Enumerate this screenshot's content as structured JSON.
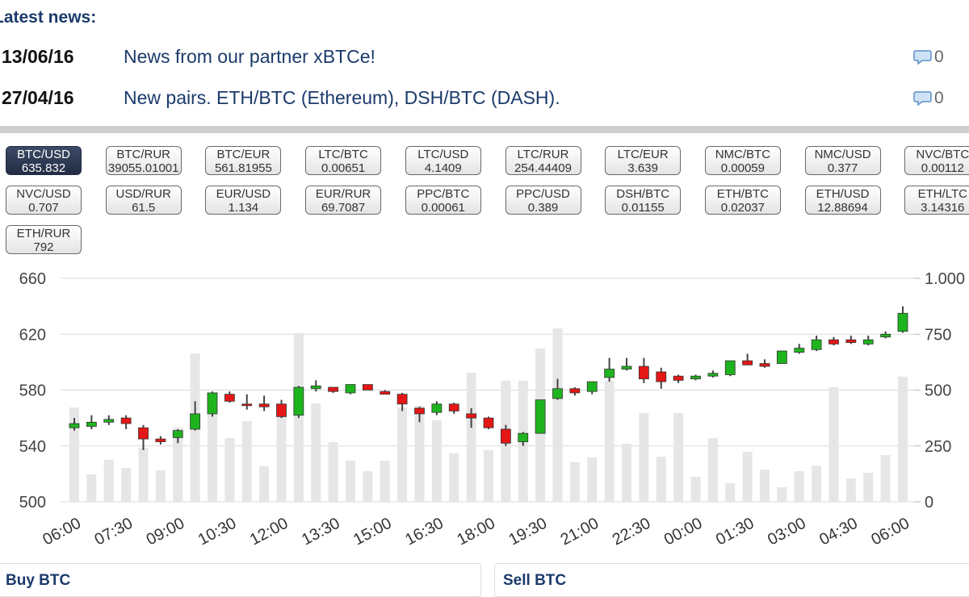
{
  "header": {
    "title": "Latest news:"
  },
  "news": [
    {
      "date": "13/06/16",
      "title": "News from our partner xBTCe!",
      "comments": 0
    },
    {
      "date": "27/04/16",
      "title": "New pairs. ETH/BTC (Ethereum), DSH/BTC (DASH).",
      "comments": 0
    }
  ],
  "pairs": [
    {
      "name": "BTC/USD",
      "price": 635.832,
      "active": true
    },
    {
      "name": "BTC/RUR",
      "price": 39055.01001
    },
    {
      "name": "BTC/EUR",
      "price": 561.81955
    },
    {
      "name": "LTC/BTC",
      "price": 0.00651
    },
    {
      "name": "LTC/USD",
      "price": 4.1409
    },
    {
      "name": "LTC/RUR",
      "price": 254.44409
    },
    {
      "name": "LTC/EUR",
      "price": 3.639
    },
    {
      "name": "NMC/BTC",
      "price": 0.00059
    },
    {
      "name": "NMC/USD",
      "price": 0.377
    },
    {
      "name": "NVC/BTC",
      "price": 0.00112
    },
    {
      "name": "NVC/USD",
      "price": 0.707
    },
    {
      "name": "USD/RUR",
      "price": 61.5
    },
    {
      "name": "EUR/USD",
      "price": 1.134
    },
    {
      "name": "EUR/RUR",
      "price": 69.7087
    },
    {
      "name": "PPC/BTC",
      "price": 0.00061
    },
    {
      "name": "PPC/USD",
      "price": 0.389
    },
    {
      "name": "DSH/BTC",
      "price": 0.01155
    },
    {
      "name": "ETH/BTC",
      "price": 0.02037
    },
    {
      "name": "ETH/USD",
      "price": 12.88694
    },
    {
      "name": "ETH/LTC",
      "price": 3.14316
    },
    {
      "name": "ETH/RUR",
      "price": 792
    }
  ],
  "chart_data": {
    "type": "candlestick",
    "categories": [
      "06:00",
      null,
      null,
      "07:30",
      null,
      null,
      "09:00",
      null,
      null,
      "10:30",
      null,
      null,
      "12:00",
      null,
      null,
      "13:30",
      null,
      null,
      "15:00",
      null,
      null,
      "16:30",
      null,
      null,
      "18:00",
      null,
      null,
      "19:30",
      null,
      null,
      "21:00",
      null,
      null,
      "22:30",
      null,
      null,
      "00:00",
      null,
      null,
      "01:30",
      null,
      null,
      "03:00",
      null,
      null,
      "04:30",
      null,
      null,
      "06:00"
    ],
    "open": [
      553,
      554,
      557,
      560,
      553,
      545,
      546,
      552,
      563,
      577,
      570,
      570,
      570,
      562,
      581,
      582,
      578,
      584,
      579,
      577,
      567,
      564,
      570,
      563,
      560,
      552,
      543,
      549,
      574,
      581,
      579,
      589,
      595,
      597,
      593,
      590,
      588,
      590,
      591,
      601,
      599,
      599,
      607,
      609,
      616,
      616,
      613,
      618,
      622
    ],
    "high": [
      560,
      562,
      562,
      562,
      555,
      547,
      552,
      572,
      579,
      579,
      577,
      576,
      573,
      583,
      587,
      582,
      584,
      584,
      580,
      578,
      568,
      572,
      571,
      567,
      561,
      555,
      550,
      573,
      588,
      582,
      586,
      603,
      603,
      603,
      596,
      591,
      591,
      594,
      601,
      606,
      602,
      608,
      613,
      619,
      618,
      619,
      619,
      622,
      640
    ],
    "low": [
      551,
      552,
      555,
      552,
      537,
      541,
      542,
      551,
      561,
      571,
      566,
      565,
      560,
      560,
      579,
      578,
      577,
      580,
      577,
      565,
      557,
      562,
      563,
      553,
      552,
      540,
      540,
      549,
      573,
      576,
      577,
      586,
      594,
      585,
      581,
      585,
      587,
      589,
      590,
      598,
      596,
      599,
      606,
      608,
      612,
      613,
      612,
      617,
      621
    ],
    "close": [
      556,
      557,
      559,
      556,
      545,
      543,
      551,
      563,
      578,
      572,
      569,
      568,
      561,
      582,
      583,
      579,
      584,
      580,
      577,
      570,
      563,
      570,
      565,
      560,
      553,
      542,
      549,
      573,
      581,
      578,
      586,
      595,
      597,
      588,
      586,
      587,
      590,
      592,
      601,
      598,
      597,
      608,
      610,
      616,
      613,
      614,
      616,
      620,
      635
    ],
    "volume": [
      422,
      123,
      188,
      152,
      242,
      141,
      332,
      664,
      404,
      285,
      361,
      159,
      422,
      755,
      440,
      267,
      184,
      137,
      184,
      422,
      430,
      365,
      217,
      578,
      231,
      542,
      542,
      686,
      776,
      177,
      199,
      542,
      260,
      397,
      202,
      397,
      112,
      285,
      83,
      224,
      144,
      65,
      137,
      162,
      513,
      105,
      130,
      209,
      560
    ],
    "volume_axis": "y2",
    "up_color": "#1eb41e",
    "down_color": "#e51616",
    "volume_color": "#e6e6e6",
    "ylim": [
      500,
      660
    ],
    "yticks": [
      500,
      540,
      580,
      620,
      660
    ],
    "y2lim": [
      0,
      1000
    ],
    "y2ticks": [
      0,
      250,
      500,
      750,
      {
        "value": 1000,
        "label": "1.000"
      }
    ],
    "grid": true
  },
  "footer": {
    "buy": "Buy BTC",
    "sell": "Sell BTC"
  }
}
